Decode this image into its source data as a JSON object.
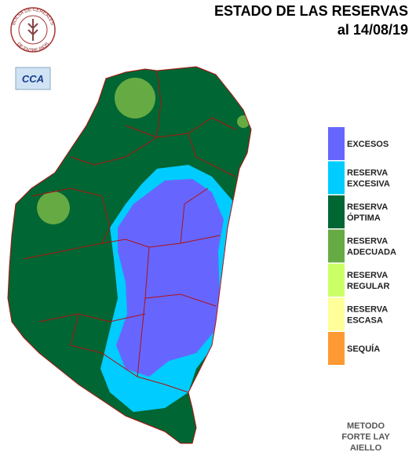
{
  "header": {
    "title": "ESTADO DE LAS RESERVAS",
    "date": "al 14/08/19"
  },
  "logos": {
    "bolsa_top": "BOLSA DE CEREALES",
    "bolsa_bottom": "DE ENTRE RIOS",
    "cca": "CCA"
  },
  "legend": [
    {
      "lines": [
        "EXCESOS"
      ],
      "color": "#6666ff"
    },
    {
      "lines": [
        "RESERVA",
        "EXCESIVA"
      ],
      "color": "#00ccff"
    },
    {
      "lines": [
        "RESERVA",
        "ÓPTIMA"
      ],
      "color": "#006633"
    },
    {
      "lines": [
        "RESERVA",
        "ADECUADA"
      ],
      "color": "#66aa44"
    },
    {
      "lines": [
        "RESERVA",
        "REGULAR"
      ],
      "color": "#ccff66"
    },
    {
      "lines": [
        "RESERVA",
        "ESCASA"
      ],
      "color": "#ffff99"
    },
    {
      "lines": [
        "SEQUÍA"
      ],
      "color": "#ff9933"
    }
  ],
  "footer": [
    "METODO",
    "FORTE LAY",
    "AIELLO"
  ]
}
